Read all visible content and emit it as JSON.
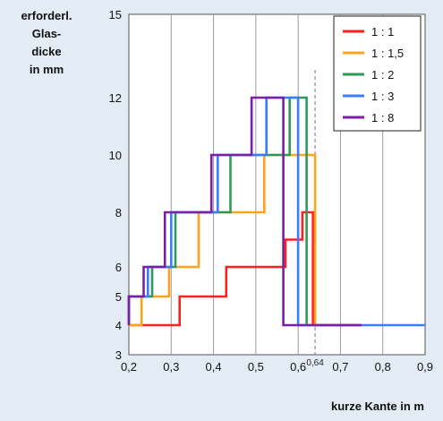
{
  "chart_data": {
    "type": "line",
    "title": "",
    "ylabel": "erforderl. Glas- dicke in mm",
    "ylabel_lines": [
      "erforderl.",
      "Glas-",
      "dicke",
      "in mm"
    ],
    "xlabel": "kurze Kante in m",
    "xlim": [
      0.2,
      0.9
    ],
    "x_ticks": [
      0.2,
      0.3,
      0.4,
      0.5,
      0.6,
      0.7,
      0.8,
      0.9
    ],
    "x_tick_labels": [
      "0,2",
      "0,3",
      "0,4",
      "0,5",
      "0,6",
      "0,7",
      "0,8",
      "0,9"
    ],
    "ylim": [
      3,
      15
    ],
    "y_ticks": [
      3,
      4,
      5,
      6,
      8,
      10,
      12,
      15
    ],
    "y_tick_labels": [
      "3",
      "4",
      "5",
      "6",
      "8",
      "10",
      "12",
      "15"
    ],
    "grid": "vertical",
    "legend_position": "top-right",
    "reference_line": {
      "x": 0.64,
      "label": "0,64"
    },
    "series": [
      {
        "name": "1 : 1",
        "color": "#ff1f1f",
        "x": [
          0.2,
          0.32,
          0.32,
          0.43,
          0.43,
          0.57,
          0.57,
          0.61,
          0.61,
          0.635,
          0.635,
          0.75
        ],
        "y": [
          4,
          4,
          5,
          5,
          6,
          6,
          7,
          7,
          8,
          8,
          4,
          4
        ]
      },
      {
        "name": "1 : 1,5",
        "color": "#ffa31a",
        "x": [
          0.2,
          0.23,
          0.23,
          0.295,
          0.295,
          0.365,
          0.365,
          0.52,
          0.52,
          0.64,
          0.64,
          0.64
        ],
        "y": [
          4,
          4,
          5,
          5,
          6,
          6,
          8,
          8,
          10,
          10,
          9.5,
          4
        ]
      },
      {
        "name": "1 : 2",
        "color": "#2e9a5a",
        "x": [
          0.2,
          0.2,
          0.255,
          0.255,
          0.31,
          0.31,
          0.44,
          0.44,
          0.58,
          0.58,
          0.62,
          0.62
        ],
        "y": [
          4,
          5,
          5,
          6,
          6,
          8,
          8,
          10,
          10,
          12,
          12,
          4
        ]
      },
      {
        "name": "1 : 3",
        "color": "#3b7cff",
        "x": [
          0.2,
          0.2,
          0.245,
          0.245,
          0.3,
          0.3,
          0.41,
          0.41,
          0.525,
          0.525,
          0.6,
          0.6,
          0.9
        ],
        "y": [
          4,
          5,
          5,
          6,
          6,
          8,
          8,
          10,
          10,
          12,
          12,
          4,
          4
        ]
      },
      {
        "name": "1 : 8",
        "color": "#7b1fa8",
        "x": [
          0.2,
          0.2,
          0.235,
          0.235,
          0.285,
          0.285,
          0.395,
          0.395,
          0.49,
          0.49,
          0.565,
          0.565,
          0.75
        ],
        "y": [
          4,
          5,
          5,
          6,
          6,
          8,
          8,
          10,
          10,
          12,
          12,
          4,
          4
        ]
      }
    ]
  }
}
